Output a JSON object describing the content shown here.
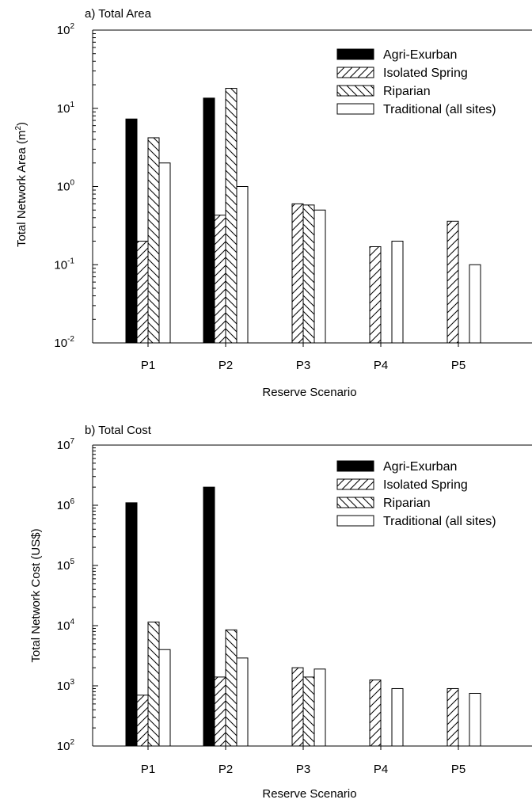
{
  "chart_data": [
    {
      "type": "bar",
      "title": "a) Total Area",
      "ylabel": "Total Network Area (m2)",
      "ylabel_parts": {
        "base": "Total Network Area (m",
        "sup": "2",
        "end": ")"
      },
      "xlabel": "Reserve Scenario",
      "yscale": "log",
      "ylim": [
        0.01,
        100
      ],
      "yticks": [
        {
          "value": 0.01,
          "base": "10",
          "exp": "-2"
        },
        {
          "value": 0.1,
          "base": "10",
          "exp": "-1"
        },
        {
          "value": 1,
          "base": "10",
          "exp": "0"
        },
        {
          "value": 10,
          "base": "10",
          "exp": "1"
        },
        {
          "value": 100,
          "base": "10",
          "exp": "2"
        }
      ],
      "categories": [
        "P1",
        "P2",
        "P3",
        "P4",
        "P5"
      ],
      "series": [
        {
          "name": "Agri-Exurban",
          "pattern": "solid",
          "values": [
            7.3,
            13.5,
            null,
            null,
            null
          ]
        },
        {
          "name": "Isolated Spring",
          "pattern": "hatch-forward",
          "values": [
            0.2,
            0.43,
            0.6,
            0.17,
            0.36
          ]
        },
        {
          "name": "Riparian",
          "pattern": "hatch-back",
          "values": [
            4.2,
            18.0,
            0.58,
            null,
            null
          ]
        },
        {
          "name": "Traditional (all sites)",
          "pattern": "empty",
          "values": [
            2.0,
            1.0,
            0.5,
            0.2,
            0.1
          ]
        }
      ],
      "legend": "top-right",
      "grid": false
    },
    {
      "type": "bar",
      "title": "b) Total Cost",
      "ylabel": "Total Network Cost (US$)",
      "xlabel": "Reserve Scenario",
      "yscale": "log",
      "ylim": [
        100,
        10000000
      ],
      "yticks": [
        {
          "value": 100,
          "base": "10",
          "exp": "2"
        },
        {
          "value": 1000,
          "base": "10",
          "exp": "3"
        },
        {
          "value": 10000,
          "base": "10",
          "exp": "4"
        },
        {
          "value": 100000,
          "base": "10",
          "exp": "5"
        },
        {
          "value": 1000000,
          "base": "10",
          "exp": "6"
        },
        {
          "value": 10000000,
          "base": "10",
          "exp": "7"
        }
      ],
      "categories": [
        "P1",
        "P2",
        "P3",
        "P4",
        "P5"
      ],
      "series": [
        {
          "name": "Agri-Exurban",
          "pattern": "solid",
          "values": [
            1100000,
            2000000,
            null,
            null,
            null
          ]
        },
        {
          "name": "Isolated Spring",
          "pattern": "hatch-forward",
          "values": [
            700,
            1400,
            2000,
            1250,
            900
          ]
        },
        {
          "name": "Riparian",
          "pattern": "hatch-back",
          "values": [
            11500,
            8500,
            1400,
            null,
            null
          ]
        },
        {
          "name": "Traditional (all sites)",
          "pattern": "empty",
          "values": [
            4000,
            2900,
            1900,
            900,
            750
          ]
        }
      ],
      "legend": "top-right",
      "grid": false
    }
  ]
}
